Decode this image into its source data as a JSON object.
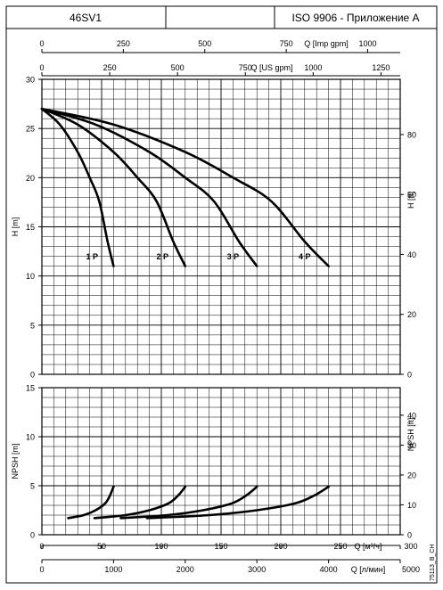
{
  "header": {
    "model": "46SV1",
    "middle": "",
    "standard": "ISO 9906 - Приложение A"
  },
  "side_code": "75113_B_CH",
  "chart_data": [
    {
      "type": "line",
      "name": "head",
      "ylabel_left": "H [m]",
      "ylabel_right": "H [ft]",
      "x_unit": "m3/h",
      "xlim": [
        0,
        300
      ],
      "ylim": [
        0,
        30
      ],
      "yticks": [
        "0",
        "5",
        "10",
        "15",
        "20",
        "25",
        "30"
      ],
      "ft_ticks": [
        "0",
        "20",
        "40",
        "60",
        "80"
      ],
      "ft_per_m": 3.28084,
      "series": [
        {
          "label": "1 P",
          "x": [
            0,
            15,
            30,
            40,
            48,
            55,
            60
          ],
          "y": [
            27.0,
            25.4,
            22.6,
            20.0,
            17.6,
            13.5,
            11.0
          ]
        },
        {
          "label": "2 P",
          "x": [
            0,
            30,
            60,
            80,
            96,
            110,
            120
          ],
          "y": [
            27.0,
            25.4,
            22.6,
            20.0,
            17.6,
            13.5,
            11.0
          ]
        },
        {
          "label": "3 P",
          "x": [
            0,
            45,
            90,
            120,
            144,
            165,
            180
          ],
          "y": [
            27.0,
            25.4,
            22.6,
            20.0,
            17.6,
            13.5,
            11.0
          ]
        },
        {
          "label": "4 P",
          "x": [
            0,
            60,
            120,
            160,
            192,
            220,
            240
          ],
          "y": [
            27.0,
            25.4,
            22.6,
            20.0,
            17.6,
            13.5,
            11.0
          ]
        }
      ],
      "label_positions": [
        {
          "label": "1 P",
          "x": 47,
          "y": 11.7
        },
        {
          "label": "2 P",
          "x": 106,
          "y": 11.7
        },
        {
          "label": "3 P",
          "x": 165,
          "y": 11.7
        },
        {
          "label": "4 P",
          "x": 225,
          "y": 11.7
        }
      ]
    },
    {
      "type": "line",
      "name": "npsh",
      "ylabel_left": "NPSH [m]",
      "ylabel_right": "NPSH [ft]",
      "xlim": [
        0,
        300
      ],
      "ylim": [
        0,
        15
      ],
      "yticks": [
        "0",
        "5",
        "10",
        "15"
      ],
      "ft_ticks": [
        "0",
        "10",
        "20",
        "30",
        "40"
      ],
      "ft_per_m": 3.28084,
      "series": [
        {
          "label": "1 P",
          "x": [
            22,
            35,
            45,
            53,
            57,
            60
          ],
          "y": [
            1.7,
            2.0,
            2.5,
            3.2,
            4.0,
            4.9
          ]
        },
        {
          "label": "2 P",
          "x": [
            44,
            70,
            90,
            106,
            114,
            120
          ],
          "y": [
            1.7,
            2.0,
            2.5,
            3.2,
            4.0,
            4.9
          ]
        },
        {
          "label": "3 P",
          "x": [
            66,
            105,
            135,
            159,
            171,
            180
          ],
          "y": [
            1.7,
            2.0,
            2.5,
            3.2,
            4.0,
            4.9
          ]
        },
        {
          "label": "4 P",
          "x": [
            88,
            140,
            180,
            212,
            228,
            240
          ],
          "y": [
            1.7,
            2.0,
            2.5,
            3.2,
            4.0,
            4.9
          ]
        }
      ]
    }
  ],
  "axes": {
    "top_imp": {
      "label": "Q [Imp gpm]",
      "max": 1000,
      "per_m3h": 3.66615,
      "ticks": [
        "0",
        "250",
        "500",
        "750",
        "1000"
      ]
    },
    "top_us": {
      "label": "Q [US gpm]",
      "max": 1250,
      "per_m3h": 4.40287,
      "ticks": [
        "0",
        "250",
        "500",
        "750",
        "1000",
        "1250"
      ]
    },
    "bottom_m3h": {
      "label": "Q [м³/ч]",
      "max": 300,
      "per_m3h": 1,
      "ticks": [
        "0",
        "50",
        "100",
        "150",
        "200",
        "250",
        "300"
      ]
    },
    "bottom_lmin": {
      "label": "Q [л/мин]",
      "max": 5000,
      "per_m3h": 16.6667,
      "ticks": [
        "0",
        "1000",
        "2000",
        "3000",
        "4000",
        "5000"
      ]
    }
  }
}
